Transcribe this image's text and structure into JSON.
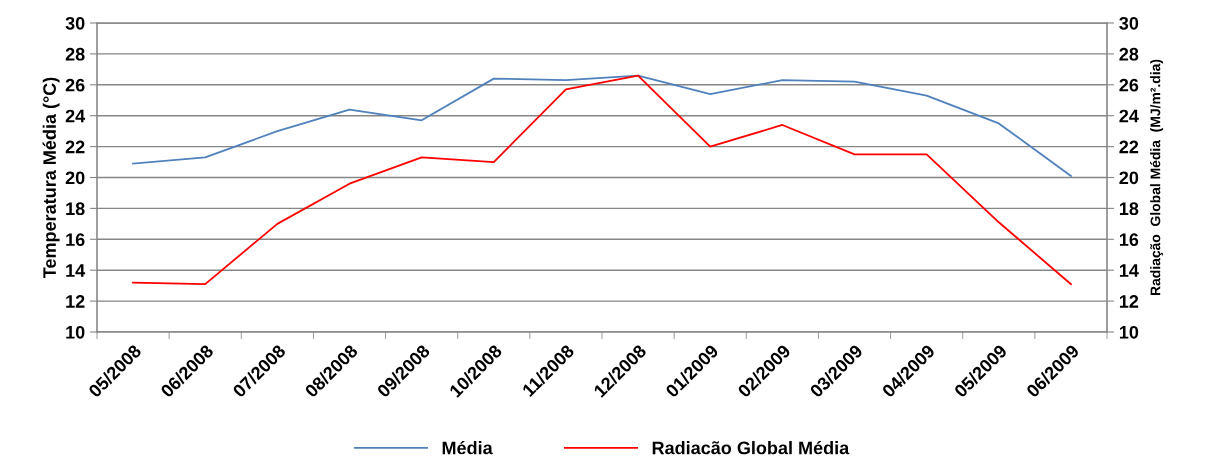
{
  "chart_data": {
    "type": "line",
    "ylabel": "Temperatura Média (°C)",
    "y2label": "Radiação  Global Média  (MJ/m².dia)",
    "categories": [
      "05/2008",
      "06/2008",
      "07/2008",
      "08/2008",
      "09/2008",
      "10/2008",
      "11/2008",
      "12/2008",
      "01/2009",
      "02/2009",
      "03/2009",
      "04/2009",
      "05/2009",
      "06/2009"
    ],
    "series": [
      {
        "name": "Média",
        "color": "#4f81bd",
        "values": [
          20.9,
          21.3,
          23.0,
          24.4,
          23.7,
          26.4,
          26.3,
          26.6,
          25.4,
          26.3,
          26.2,
          25.3,
          23.5,
          20.1
        ]
      },
      {
        "name": "Radiacão Global Média",
        "color": "#ff0000",
        "axis": "y2",
        "values": [
          13.2,
          13.1,
          17.0,
          19.6,
          21.3,
          21.0,
          25.7,
          26.6,
          22.0,
          23.4,
          21.5,
          21.5,
          17.1,
          13.1
        ]
      }
    ],
    "ylim": [
      10,
      30
    ],
    "yticks": [
      10,
      12,
      14,
      16,
      18,
      20,
      22,
      24,
      26,
      28,
      30
    ],
    "y2lim": [
      10,
      30
    ],
    "y2ticks": [
      10,
      12,
      14,
      16,
      18,
      20,
      22,
      24,
      26,
      28,
      30
    ],
    "grid": "y",
    "legend": "bottom",
    "marker": "none",
    "line_style": "solid"
  }
}
